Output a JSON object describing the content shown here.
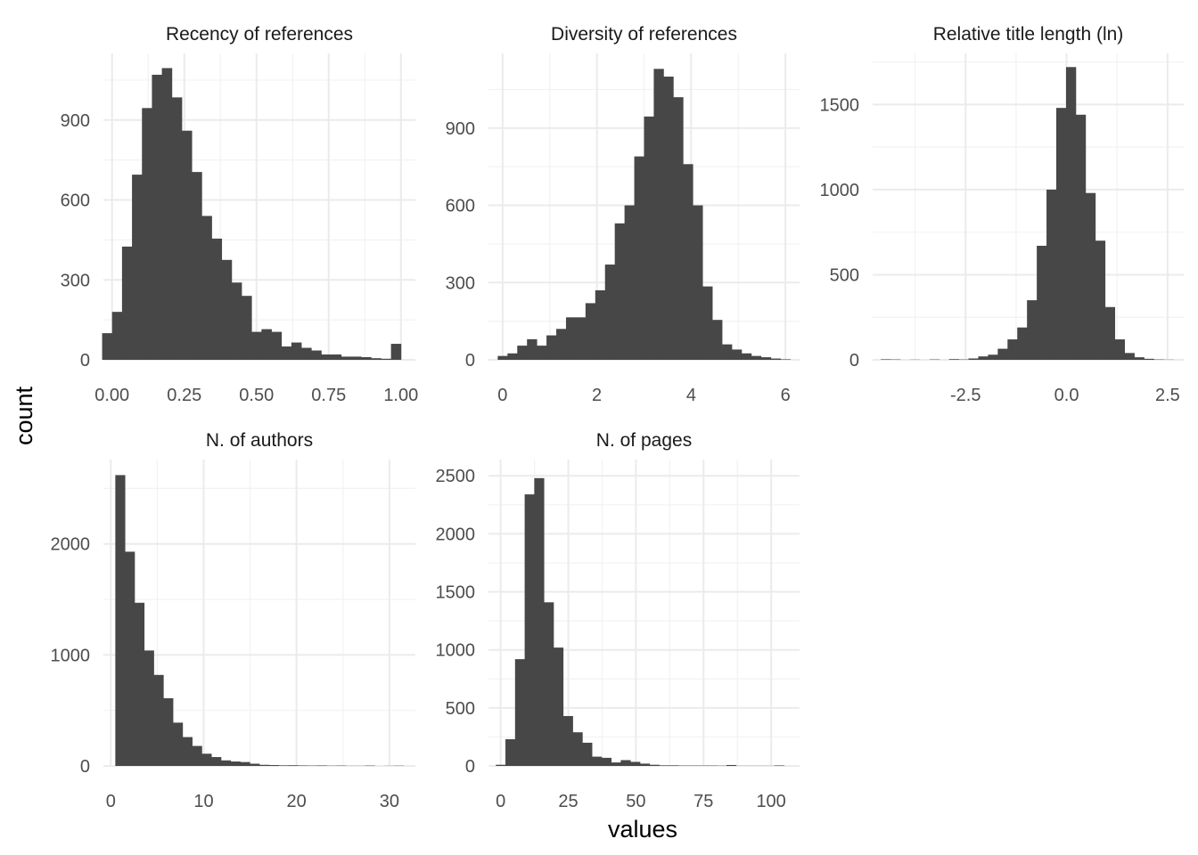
{
  "figure": {
    "xlabel": "values",
    "ylabel": "count"
  },
  "chart_data": [
    {
      "type": "bar",
      "title": "Recency of references",
      "xlim": [
        -0.03,
        1.05
      ],
      "ylim": [
        0,
        1150
      ],
      "xticks": [
        0.0,
        0.25,
        0.5,
        0.75,
        1.0
      ],
      "xtick_labels": [
        "0.00",
        "0.25",
        "0.50",
        "0.75",
        "1.00"
      ],
      "yticks": [
        0,
        300,
        600,
        900
      ],
      "ytick_labels": [
        "0",
        "300",
        "600",
        "900"
      ],
      "bin_width": 0.0345,
      "bins_x": [
        -0.0172,
        0.0172,
        0.0517,
        0.0862,
        0.1207,
        0.1552,
        0.1897,
        0.2241,
        0.2586,
        0.2931,
        0.3276,
        0.3621,
        0.3966,
        0.431,
        0.4655,
        0.5,
        0.5345,
        0.569,
        0.6034,
        0.6379,
        0.6724,
        0.7069,
        0.7414,
        0.7759,
        0.8103,
        0.8448,
        0.8793,
        0.9138,
        0.9483,
        0.9828
      ],
      "values": [
        100,
        180,
        425,
        695,
        945,
        1070,
        1095,
        985,
        860,
        705,
        540,
        455,
        375,
        290,
        240,
        105,
        115,
        105,
        50,
        65,
        45,
        35,
        20,
        20,
        12,
        12,
        10,
        6,
        4,
        60
      ]
    },
    {
      "type": "bar",
      "title": "Diversity of references",
      "xlim": [
        -0.3,
        6.3
      ],
      "ylim": [
        0,
        1190
      ],
      "xticks": [
        0,
        2,
        4,
        6
      ],
      "xtick_labels": [
        "0",
        "2",
        "4",
        "6"
      ],
      "yticks": [
        0,
        300,
        600,
        900
      ],
      "ytick_labels": [
        "0",
        "300",
        "600",
        "900"
      ],
      "bin_width": 0.2069,
      "bins_x": [
        0.0,
        0.2069,
        0.4138,
        0.6207,
        0.8276,
        1.0345,
        1.2414,
        1.4483,
        1.6552,
        1.8621,
        2.069,
        2.2759,
        2.4828,
        2.6897,
        2.8966,
        3.1034,
        3.3103,
        3.5172,
        3.7241,
        3.931,
        4.1379,
        4.3448,
        4.5517,
        4.7586,
        4.9655,
        5.1724,
        5.3793,
        5.5862,
        5.7931,
        6.0
      ],
      "values": [
        15,
        25,
        55,
        80,
        55,
        95,
        120,
        165,
        165,
        220,
        270,
        370,
        530,
        600,
        790,
        945,
        1130,
        1100,
        1020,
        760,
        600,
        285,
        155,
        60,
        40,
        25,
        15,
        10,
        5,
        2
      ]
    },
    {
      "type": "bar",
      "title": "Relative title length (ln)",
      "xlim": [
        -4.8,
        2.9
      ],
      "ylim": [
        0,
        1800
      ],
      "xticks": [
        -2.5,
        0.0,
        2.5
      ],
      "xtick_labels": [
        "-2.5",
        "0.0",
        "2.5"
      ],
      "yticks": [
        0,
        500,
        1000,
        1500
      ],
      "ytick_labels": [
        "0",
        "500",
        "1000",
        "1500"
      ],
      "bin_width": 0.2414,
      "bins_x": [
        -4.479,
        -4.238,
        -3.996,
        -3.755,
        -3.514,
        -3.272,
        -3.031,
        -2.79,
        -2.548,
        -2.307,
        -2.066,
        -1.824,
        -1.583,
        -1.341,
        -1.1,
        -0.859,
        -0.617,
        -0.376,
        -0.135,
        0.107,
        0.348,
        0.59,
        0.831,
        1.072,
        1.314,
        1.555,
        1.796,
        2.038,
        2.279,
        2.521
      ],
      "values": [
        3,
        2,
        0,
        1,
        0,
        2,
        0,
        4,
        2,
        8,
        20,
        30,
        65,
        120,
        190,
        350,
        670,
        1000,
        1480,
        1720,
        1440,
        980,
        700,
        310,
        120,
        40,
        15,
        6,
        2,
        1
      ]
    },
    {
      "type": "bar",
      "title": "N. of authors",
      "xlim": [
        -0.8,
        32.8
      ],
      "ylim": [
        0,
        2760
      ],
      "xticks": [
        0,
        10,
        20,
        30
      ],
      "xtick_labels": [
        "0",
        "10",
        "20",
        "30"
      ],
      "yticks": [
        0,
        1000,
        2000
      ],
      "ytick_labels": [
        "0",
        "1000",
        "2000"
      ],
      "bin_width": 1.0345,
      "bins_x": [
        1.0,
        2.0345,
        3.069,
        4.1034,
        5.1379,
        6.1724,
        7.2069,
        8.2414,
        9.2759,
        10.3103,
        11.3448,
        12.3793,
        13.4138,
        14.4483,
        15.4828,
        16.5172,
        17.5517,
        18.5862,
        19.6207,
        20.6552,
        21.6897,
        22.7241,
        23.7586,
        24.7931,
        25.8276,
        26.8621,
        27.8966,
        28.931,
        29.9655,
        31.0
      ],
      "values": [
        2620,
        1930,
        1470,
        1040,
        820,
        610,
        390,
        260,
        180,
        110,
        80,
        50,
        40,
        35,
        20,
        10,
        8,
        5,
        6,
        4,
        3,
        4,
        2,
        3,
        1,
        1,
        3,
        0,
        1,
        2
      ]
    },
    {
      "type": "bar",
      "title": "N. of pages",
      "xlim": [
        -4.5,
        110.5
      ],
      "ylim": [
        0,
        2640
      ],
      "xticks": [
        0,
        25,
        50,
        75,
        100
      ],
      "xtick_labels": [
        "0",
        "25",
        "50",
        "75",
        "100"
      ],
      "yticks": [
        0,
        500,
        1000,
        1500,
        2000,
        2500
      ],
      "ytick_labels": [
        "0",
        "500",
        "1000",
        "1500",
        "2000",
        "2500"
      ],
      "bin_width": 3.5517,
      "bins_x": [
        0.0,
        3.5517,
        7.1034,
        10.6552,
        14.2069,
        17.7586,
        21.3103,
        24.8621,
        28.4138,
        31.9655,
        35.5172,
        39.069,
        42.6207,
        46.1724,
        49.7241,
        53.2759,
        56.8276,
        60.3793,
        63.931,
        67.4828,
        71.0345,
        74.5862,
        78.1379,
        81.6897,
        85.2414,
        88.7931,
        92.3448,
        95.8966,
        99.4483,
        103.0
      ],
      "values": [
        10,
        230,
        920,
        2340,
        2480,
        1410,
        1020,
        430,
        290,
        200,
        80,
        70,
        30,
        50,
        35,
        20,
        10,
        5,
        5,
        3,
        3,
        3,
        3,
        2,
        8,
        1,
        1,
        1,
        1,
        4
      ]
    }
  ]
}
